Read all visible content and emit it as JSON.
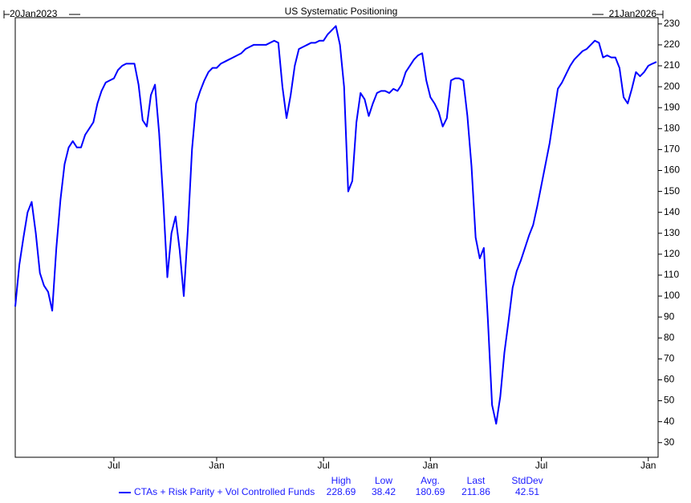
{
  "chart_data": {
    "type": "line",
    "title": "US Systematic Positioning",
    "start_label": "20Jan2023",
    "end_label": "21Jan2026",
    "categories": [
      null,
      null,
      null,
      null,
      null,
      null,
      null,
      null,
      null,
      null,
      null,
      null,
      null,
      null,
      null,
      null,
      null,
      null,
      null,
      null,
      null,
      null,
      null,
      null,
      "Jul",
      null,
      null,
      null,
      null,
      null,
      null,
      null,
      null,
      null,
      null,
      null,
      null,
      null,
      null,
      null,
      null,
      null,
      null,
      null,
      null,
      null,
      null,
      null,
      null,
      "Jan",
      null,
      null,
      null,
      null,
      null,
      null,
      null,
      null,
      null,
      null,
      null,
      null,
      null,
      null,
      null,
      null,
      null,
      null,
      null,
      null,
      null,
      null,
      null,
      null,
      null,
      "Jul",
      null,
      null,
      null,
      null,
      null,
      null,
      null,
      null,
      null,
      null,
      null,
      null,
      null,
      null,
      null,
      null,
      null,
      null,
      null,
      null,
      null,
      null,
      null,
      null,
      null,
      "Jan",
      null,
      null,
      null,
      null,
      null,
      null,
      null,
      null,
      null,
      null,
      null,
      null,
      null,
      null,
      null,
      null,
      null,
      null,
      null,
      null,
      null,
      null,
      null,
      null,
      null,
      null,
      "Jul",
      null,
      null,
      null,
      null,
      null,
      null,
      null,
      null,
      null,
      null,
      null,
      null,
      null,
      null,
      null,
      null,
      null,
      null,
      null,
      null,
      null,
      null,
      null,
      null,
      null,
      "Jan",
      null,
      null
    ],
    "series": [
      {
        "name": "CTAs + Risk Parity + Vol Controlled Funds",
        "color": "#0000ff",
        "values": [
          95,
          115,
          128,
          140,
          145,
          130,
          111,
          105,
          102,
          93,
          123,
          146,
          163,
          171,
          174,
          171,
          171,
          177,
          180,
          183,
          192,
          198,
          202,
          203,
          204,
          208,
          210,
          211,
          211,
          211,
          201,
          184,
          181,
          196,
          201,
          178,
          146,
          109,
          130,
          138,
          122,
          100,
          132,
          170,
          192,
          198,
          203,
          207,
          209,
          209,
          211,
          212,
          213,
          214,
          215,
          216,
          218,
          219,
          220,
          220,
          220,
          220,
          221,
          222,
          221,
          200,
          185,
          196,
          210,
          218,
          219,
          220,
          221,
          221,
          222,
          222,
          225,
          227,
          229,
          220,
          200,
          150,
          155,
          183,
          197,
          194,
          186,
          192,
          197,
          198,
          198,
          197,
          199,
          198,
          201,
          207,
          210,
          213,
          215,
          216,
          203,
          195,
          192,
          188,
          181,
          185,
          203,
          204,
          204,
          203,
          186,
          162,
          128,
          118,
          123,
          88,
          48,
          39,
          52,
          73,
          88,
          104,
          112,
          117,
          123,
          129,
          134,
          143,
          153,
          163,
          173,
          186,
          199,
          202,
          206,
          210,
          213,
          215,
          217,
          218,
          220,
          222,
          221,
          214,
          215,
          214,
          214,
          209,
          195,
          192,
          199,
          207,
          205,
          207,
          210,
          211,
          211.86
        ]
      }
    ],
    "ylim": [
      23,
      233
    ],
    "yticks": [
      30,
      40,
      50,
      60,
      70,
      80,
      90,
      100,
      110,
      120,
      130,
      140,
      150,
      160,
      170,
      180,
      190,
      200,
      210,
      220,
      230
    ],
    "stats": {
      "labels": [
        "High",
        "Low",
        "Avg.",
        "Last",
        "StdDev"
      ],
      "values": [
        228.69,
        38.42,
        180.69,
        211.86,
        42.51
      ]
    }
  }
}
